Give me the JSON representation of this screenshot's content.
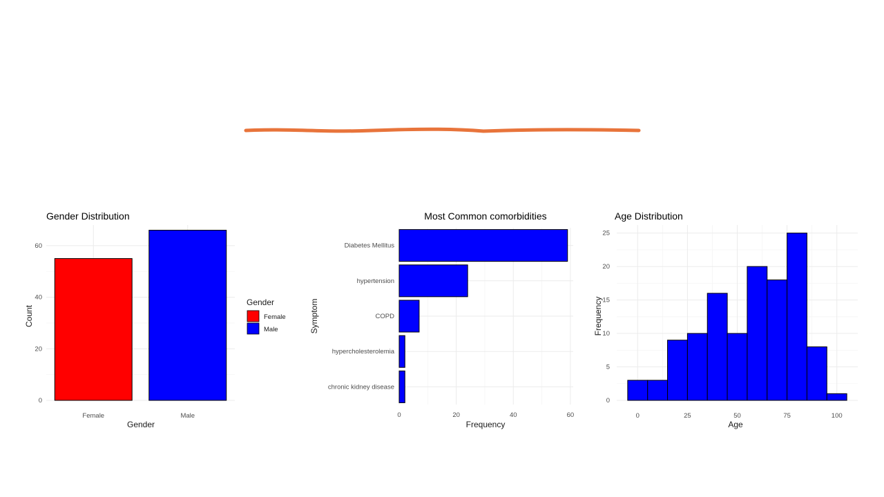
{
  "slide": {
    "accent_color": "#E8743B"
  },
  "chart_data": [
    {
      "type": "bar",
      "title": "Gender Distribution",
      "xlabel": "Gender",
      "ylabel": "Count",
      "categories": [
        "Female",
        "Male"
      ],
      "values": [
        55,
        66
      ],
      "colors": [
        "#FF0000",
        "#0000FF"
      ],
      "ylim": [
        0,
        68
      ],
      "yticks": [
        0,
        20,
        40,
        60
      ],
      "grid": true,
      "legend": {
        "title": "Gender",
        "position": "right",
        "entries": [
          {
            "label": "Female",
            "color": "#FF0000"
          },
          {
            "label": "Male",
            "color": "#0000FF"
          }
        ]
      }
    },
    {
      "type": "bar",
      "orientation": "horizontal",
      "title": "Most Common comorbidities",
      "xlabel": "Frequency",
      "ylabel": "Symptom",
      "categories": [
        "Diabetes Mellitus",
        "hypertension",
        "COPD",
        "hypercholesterolemia",
        "chronic kidney disease"
      ],
      "values": [
        59,
        24,
        7,
        2,
        2
      ],
      "color": "#0000FF",
      "xlim": [
        0,
        61
      ],
      "xticks": [
        0,
        20,
        40,
        60
      ],
      "grid": true
    },
    {
      "type": "bar",
      "subtype": "histogram",
      "title": "Age Distribution",
      "xlabel": "Age",
      "ylabel": "Frequency",
      "bin_width": 10,
      "bin_starts": [
        -5,
        5,
        15,
        25,
        35,
        45,
        55,
        65,
        75,
        85,
        95
      ],
      "values": [
        3,
        3,
        9,
        10,
        16,
        10,
        20,
        18,
        25,
        8,
        1
      ],
      "color": "#0000FF",
      "xlim": [
        -10.5,
        110.5
      ],
      "xticks": [
        0,
        25,
        50,
        75,
        100
      ],
      "ylim": [
        0,
        26.2
      ],
      "yticks": [
        0,
        5,
        10,
        15,
        20,
        25
      ],
      "grid": true
    }
  ]
}
